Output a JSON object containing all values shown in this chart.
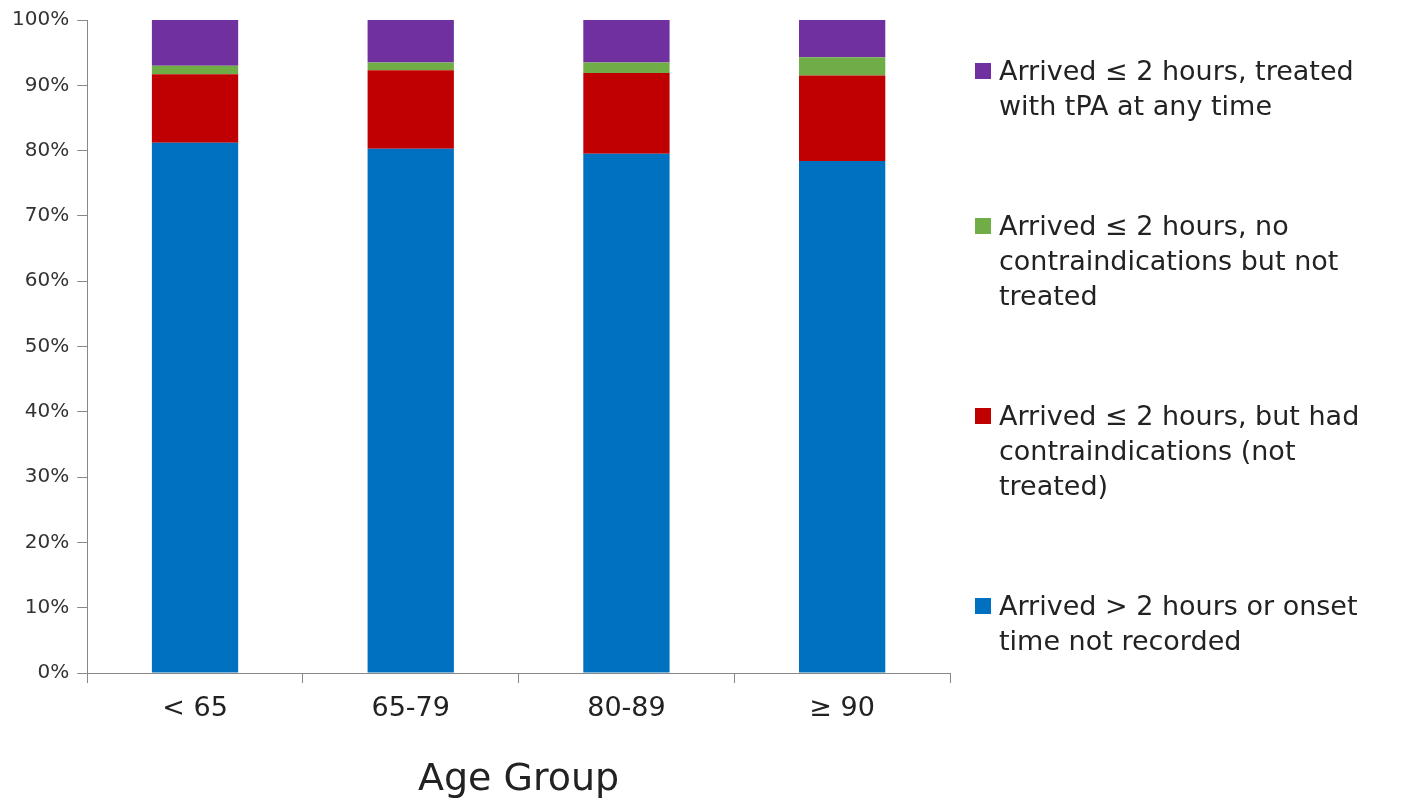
{
  "chart_data": {
    "type": "bar",
    "xlabel": "Age Group",
    "categories": [
      "< 65",
      "65-79",
      "80-89",
      "≥ 90"
    ],
    "stacked": true,
    "ylim": [
      0,
      100
    ],
    "yticks": [
      {
        "value": 0,
        "label": "0%"
      },
      {
        "value": 10,
        "label": "10%"
      },
      {
        "value": 20,
        "label": "20%"
      },
      {
        "value": 30,
        "label": "30%"
      },
      {
        "value": 40,
        "label": "40%"
      },
      {
        "value": 50,
        "label": "50%"
      },
      {
        "value": 60,
        "label": "60%"
      },
      {
        "value": 70,
        "label": "70%"
      },
      {
        "value": 80,
        "label": "80%"
      },
      {
        "value": 90,
        "label": "90%"
      },
      {
        "value": 100,
        "label": "100%"
      }
    ],
    "grid": false,
    "legend": "right",
    "series": [
      {
        "name": "Arrived > 2 hours or onset time not recorded",
        "color": "#0070c0",
        "values": [
          81.2,
          80.3,
          79.5,
          78.4
        ]
      },
      {
        "name": "Arrived ≤ 2 hours, but had contraindications (not treated)",
        "color": "#c00000",
        "values": [
          10.5,
          12.0,
          12.4,
          13.1
        ]
      },
      {
        "name": "Arrived ≤ 2 hours, no contraindications but not treated",
        "color": "#70ad47",
        "values": [
          1.3,
          1.2,
          1.6,
          2.8
        ]
      },
      {
        "name": "Arrived ≤ 2 hours, treated with tPA at any time",
        "color": "#7030a0",
        "values": [
          7.0,
          6.5,
          6.5,
          5.7
        ]
      }
    ]
  }
}
